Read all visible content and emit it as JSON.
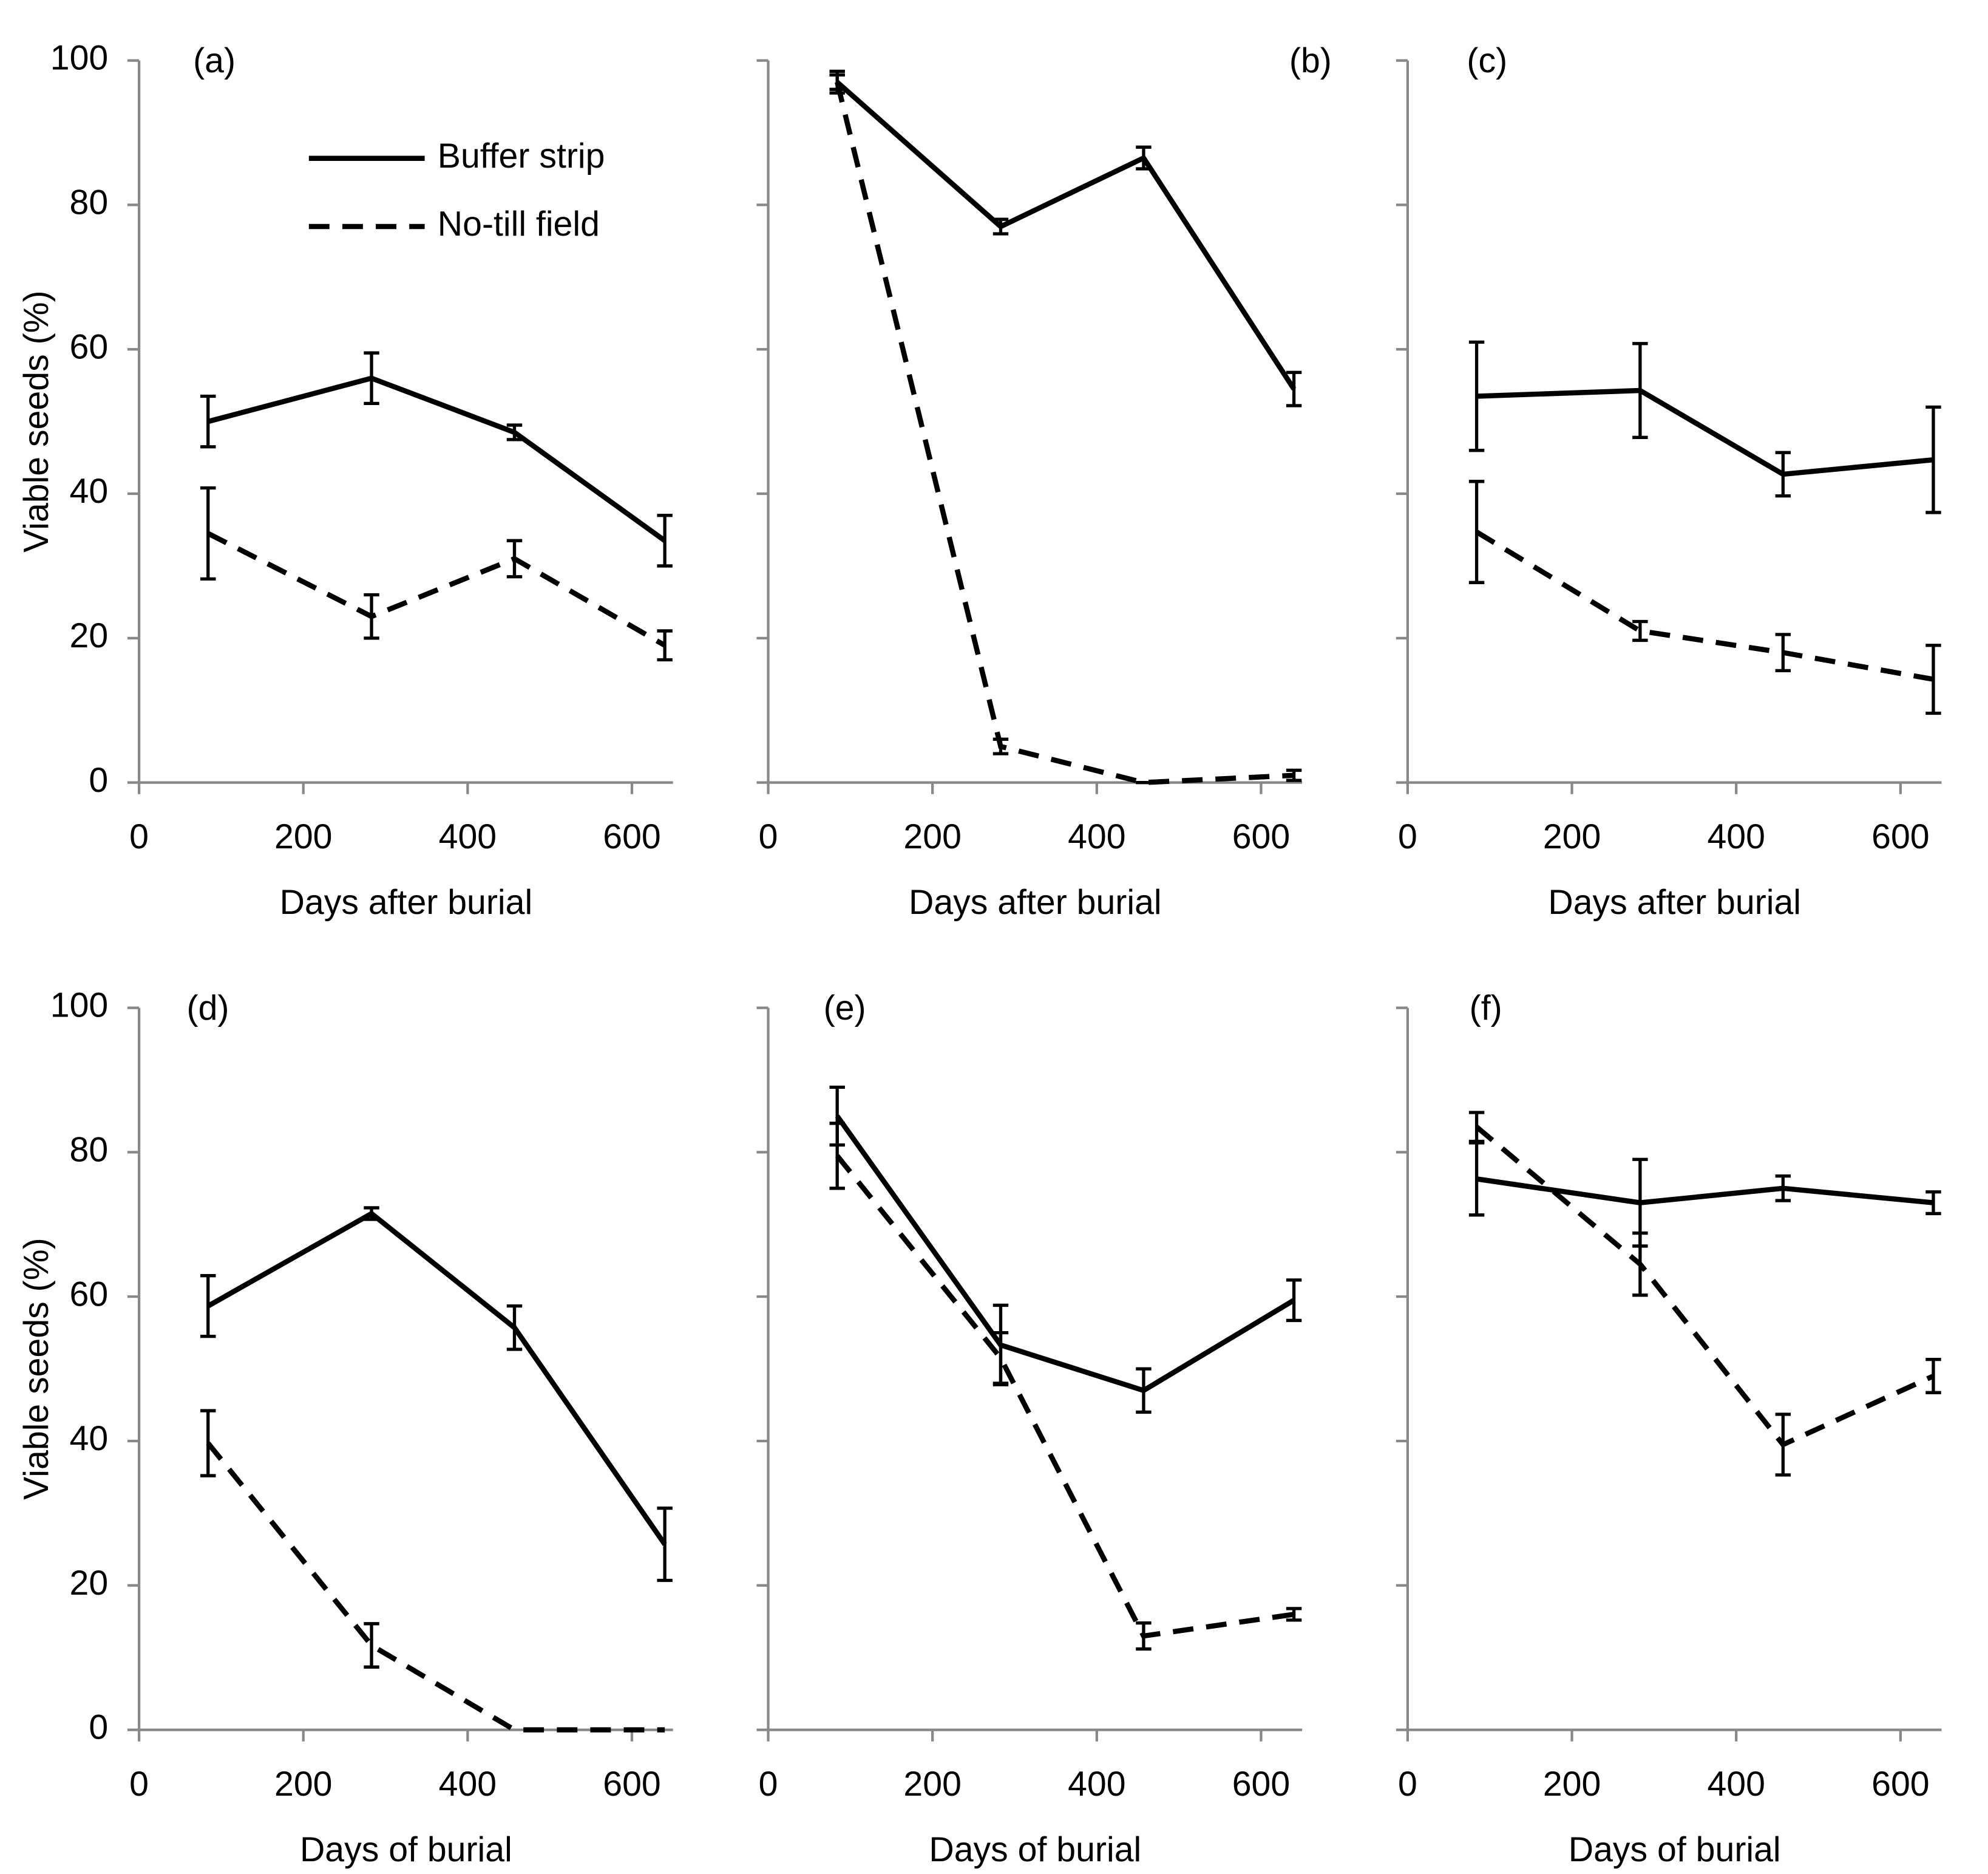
{
  "chart_data": [
    {
      "type": "line",
      "title": "(a)",
      "xlabel": "Days after burial",
      "ylabel": "Viable seeds (%)",
      "x": [
        84,
        283,
        457,
        640
      ],
      "xlim": [
        0,
        650
      ],
      "xticks": [
        0,
        200,
        400,
        600
      ],
      "ylim": [
        0,
        100
      ],
      "yticks": [
        0,
        20,
        40,
        60,
        80,
        100
      ],
      "legend": "upper center",
      "series": [
        {
          "name": "Buffer strip",
          "color": "#000000",
          "dash": false,
          "values": [
            50,
            56,
            48.5,
            33.5
          ],
          "errors": [
            3.5,
            3.5,
            1,
            3.5
          ]
        },
        {
          "name": "No-till field",
          "color": "#000000",
          "dash": true,
          "values": [
            34.5,
            23,
            31,
            19
          ],
          "errors": [
            6.3,
            3,
            2.5,
            2
          ]
        }
      ]
    },
    {
      "type": "line",
      "title": "(b)",
      "xlabel": "Days after burial",
      "x": [
        84,
        283,
        457,
        640
      ],
      "xlim": [
        0,
        650
      ],
      "xticks": [
        0,
        200,
        400,
        600
      ],
      "ylim": [
        0,
        100
      ],
      "yticks": [
        0,
        20,
        40,
        60,
        80,
        100
      ],
      "show_ytick_labels": false,
      "series": [
        {
          "color": "#000000",
          "dash": false,
          "values": [
            97,
            77,
            86.5,
            54.5
          ],
          "errors": [
            1.5,
            1,
            1.5,
            2.3
          ]
        },
        {
          "color": "#000000",
          "dash": true,
          "values": [
            97,
            5,
            0,
            1
          ],
          "errors": [
            1,
            1,
            0,
            0.7
          ]
        }
      ]
    },
    {
      "type": "line",
      "title": "(c)",
      "xlabel": "Days after burial",
      "x": [
        84,
        283,
        457,
        640
      ],
      "xlim": [
        0,
        650
      ],
      "xticks": [
        0,
        200,
        400,
        600
      ],
      "ylim": [
        0,
        100
      ],
      "yticks": [
        0,
        20,
        40,
        60,
        80,
        100
      ],
      "show_ytick_labels": false,
      "series": [
        {
          "color": "#000000",
          "dash": false,
          "values": [
            53.5,
            54.3,
            42.7,
            44.7
          ],
          "errors": [
            7.5,
            6.5,
            3,
            7.3
          ]
        },
        {
          "color": "#000000",
          "dash": true,
          "values": [
            34.7,
            21,
            18,
            14.3
          ],
          "errors": [
            7,
            1.3,
            2.5,
            4.7
          ]
        }
      ]
    },
    {
      "type": "line",
      "title": "(d)",
      "xlabel": "Days of burial",
      "ylabel": "Viable seeds (%)",
      "x": [
        84,
        283,
        457,
        640
      ],
      "xlim": [
        0,
        650
      ],
      "xticks": [
        0,
        200,
        400,
        600
      ],
      "ylim": [
        0,
        100
      ],
      "yticks": [
        0,
        20,
        40,
        60,
        80,
        100
      ],
      "series": [
        {
          "color": "#000000",
          "dash": false,
          "values": [
            58.7,
            71.5,
            55.7,
            25.7
          ],
          "errors": [
            4.2,
            0.8,
            3,
            5
          ]
        },
        {
          "color": "#000000",
          "dash": true,
          "values": [
            39.7,
            11.7,
            0,
            0
          ],
          "errors": [
            4.5,
            3,
            null,
            null
          ]
        }
      ]
    },
    {
      "type": "line",
      "title": "(e)",
      "xlabel": "Days of burial",
      "x": [
        84,
        283,
        457,
        640
      ],
      "xlim": [
        0,
        650
      ],
      "xticks": [
        0,
        200,
        400,
        600
      ],
      "ylim": [
        0,
        100
      ],
      "yticks": [
        0,
        20,
        40,
        60,
        80,
        100
      ],
      "show_ytick_labels": false,
      "series": [
        {
          "color": "#000000",
          "dash": false,
          "values": [
            85,
            53.3,
            47,
            59.5
          ],
          "errors": [
            4,
            5.5,
            3,
            2.8
          ]
        },
        {
          "color": "#000000",
          "dash": true,
          "values": [
            79.5,
            51.5,
            13,
            16
          ],
          "errors": [
            4.5,
            3.5,
            1.8,
            0.8
          ]
        }
      ]
    },
    {
      "type": "line",
      "title": "(f)",
      "xlabel": "Days of burial",
      "x": [
        84,
        283,
        457,
        640
      ],
      "xlim": [
        0,
        650
      ],
      "xticks": [
        0,
        200,
        400,
        600
      ],
      "ylim": [
        0,
        100
      ],
      "yticks": [
        0,
        20,
        40,
        60,
        80,
        100
      ],
      "show_ytick_labels": false,
      "series": [
        {
          "color": "#000000",
          "dash": false,
          "values": [
            76.3,
            73,
            75,
            73
          ],
          "errors": [
            5,
            6,
            1.7,
            1.5
          ]
        },
        {
          "color": "#000000",
          "dash": true,
          "values": [
            83.5,
            64.5,
            39.5,
            49
          ],
          "errors": [
            2,
            4.3,
            4.2,
            2.3
          ]
        }
      ]
    }
  ]
}
